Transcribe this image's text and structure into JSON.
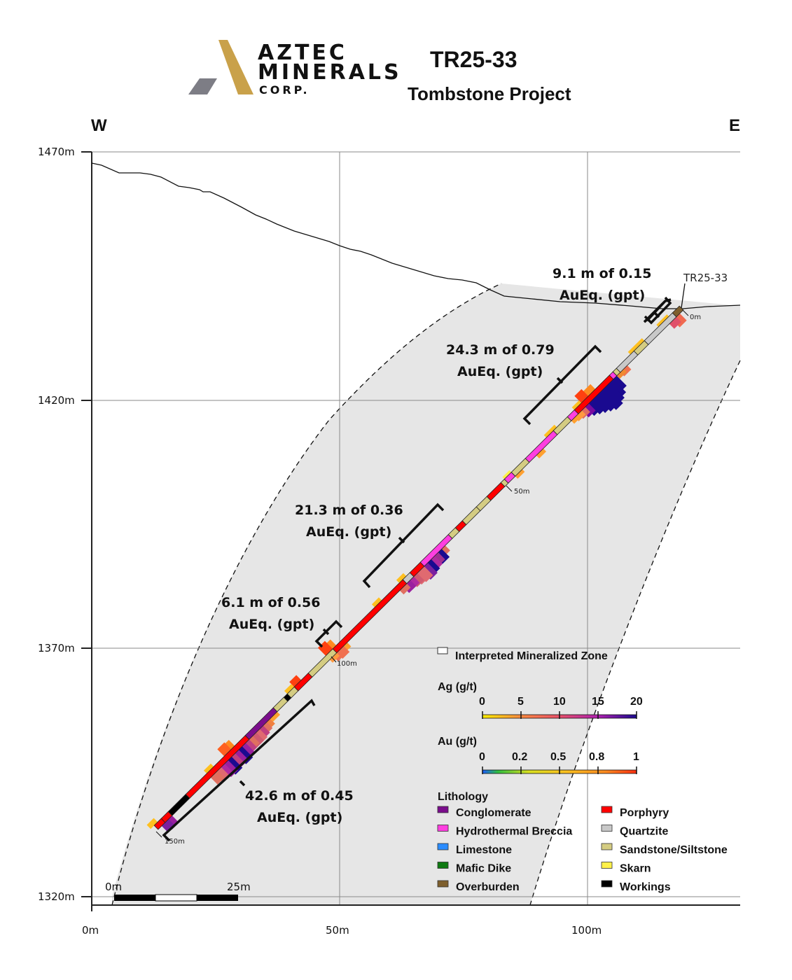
{
  "header": {
    "logo": {
      "line1": "AZTEC",
      "line2": "MINERALS",
      "line3": "CORP.",
      "gold": "#c9a14a",
      "gray": "#7d7d85"
    },
    "hole_id": "TR25-33",
    "project": "Tombstone Project"
  },
  "orientation": {
    "west": "W",
    "east": "E"
  },
  "axes": {
    "y_ticks": [
      "1470m",
      "1420m",
      "1370m",
      "1320m"
    ],
    "x_ticks": [
      "0m",
      "50m",
      "100m"
    ]
  },
  "collar_label": "TR25-33",
  "depth_markers": [
    "0m",
    "50m",
    "100m",
    "150m"
  ],
  "intercepts": [
    {
      "line1": "9.1 m of 0.15",
      "line2": "AuEq. (gpt)"
    },
    {
      "line1": "24.3 m of 0.79",
      "line2": "AuEq. (gpt)"
    },
    {
      "line1": "21.3 m of 0.36",
      "line2": "AuEq. (gpt)"
    },
    {
      "line1": "6.1 m of 0.56",
      "line2": "AuEq. (gpt)"
    },
    {
      "line1": "42.6 m of 0.45",
      "line2": "AuEq. (gpt)"
    }
  ],
  "scale_bar": {
    "start": "0m",
    "end": "25m"
  },
  "legend": {
    "zone_label": "Interpreted Mineralized Zone",
    "ag": {
      "title": "Ag (g/t)",
      "ticks": [
        "0",
        "5",
        "10",
        "15",
        "20"
      ]
    },
    "au": {
      "title": "Au (g/t)",
      "ticks": [
        "0",
        "0.2",
        "0.5",
        "0.8",
        "1"
      ]
    },
    "lithology_title": "Lithology",
    "lithology": [
      {
        "label": "Conglomerate",
        "color": "#7b0d8c"
      },
      {
        "label": "Hydrothermal Breccia",
        "color": "#ff3fe0"
      },
      {
        "label": "Limestone",
        "color": "#2a8cff"
      },
      {
        "label": "Mafic Dike",
        "color": "#0f7a12"
      },
      {
        "label": "Overburden",
        "color": "#7e5f2d"
      },
      {
        "label": "Porphyry",
        "color": "#ff0000"
      },
      {
        "label": "Quartzite",
        "color": "#c8c8c8"
      },
      {
        "label": "Sandstone/Siltstone",
        "color": "#d4cc82"
      },
      {
        "label": "Skarn",
        "color": "#fff14a"
      },
      {
        "label": "Workings",
        "color": "#000000"
      }
    ]
  },
  "colors": {
    "zone_fill": "#e6e6e6",
    "grid": "#8a8a8a"
  }
}
